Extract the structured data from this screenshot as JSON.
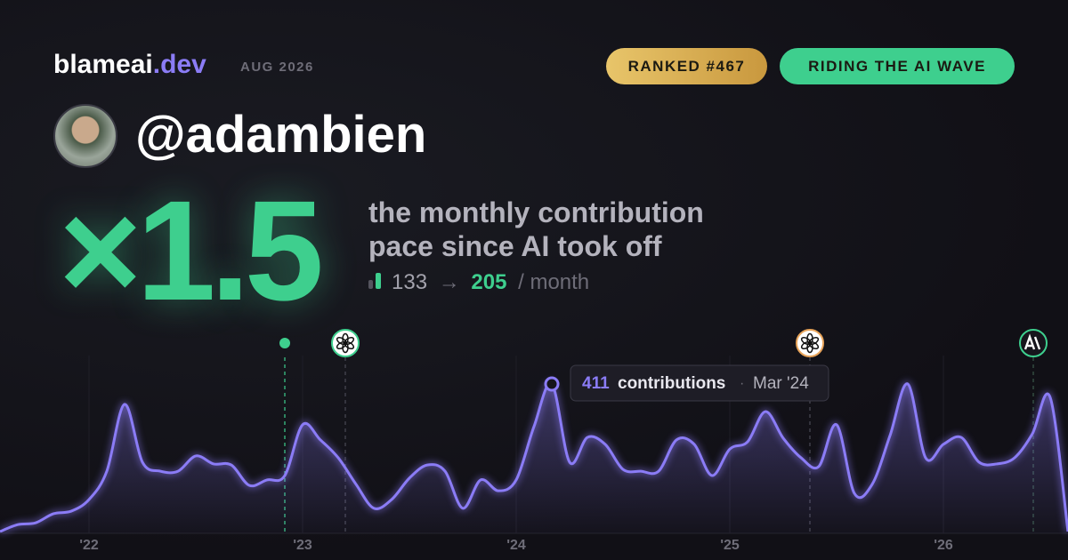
{
  "header": {
    "brand": "blameai",
    "brand_tld": ".dev",
    "date": "AUG 2026",
    "badges": [
      "RANKED #467",
      "RIDING THE AI WAVE"
    ]
  },
  "profile": {
    "handle": "@adambien"
  },
  "headline": {
    "multiplier": "×1.5",
    "description": [
      "the monthly contribution",
      "pace since AI took off"
    ],
    "before": "133",
    "arrow": "→",
    "after": "205",
    "unit": "/ month"
  },
  "chart_data": {
    "type": "line",
    "color": "#8b7cf6",
    "categories": [
      null,
      null,
      null,
      null,
      null,
      "'22",
      null,
      null,
      null,
      null,
      null,
      null,
      null,
      null,
      null,
      null,
      null,
      "'23",
      null,
      null,
      null,
      null,
      null,
      null,
      null,
      null,
      null,
      null,
      null,
      "'24",
      null,
      null,
      null,
      null,
      null,
      null,
      null,
      null,
      null,
      null,
      null,
      "'25",
      null,
      null,
      null,
      null,
      null,
      null,
      null,
      null,
      null,
      null,
      null,
      "'26",
      null,
      null,
      null,
      null,
      null,
      null,
      null
    ],
    "values": [
      5,
      24,
      29,
      54,
      61,
      93,
      171,
      355,
      196,
      171,
      171,
      213,
      191,
      188,
      132,
      147,
      159,
      299,
      257,
      208,
      135,
      69,
      93,
      152,
      188,
      171,
      69,
      147,
      117,
      147,
      294,
      411,
      196,
      264,
      245,
      176,
      171,
      171,
      257,
      245,
      159,
      232,
      252,
      335,
      262,
      208,
      184,
      299,
      110,
      135,
      269,
      411,
      208,
      245,
      264,
      196,
      191,
      208,
      274,
      374,
      5
    ],
    "tooltip": {
      "value": 411,
      "text": "contributions",
      "separator": "·",
      "month": "Mar '24"
    }
  }
}
